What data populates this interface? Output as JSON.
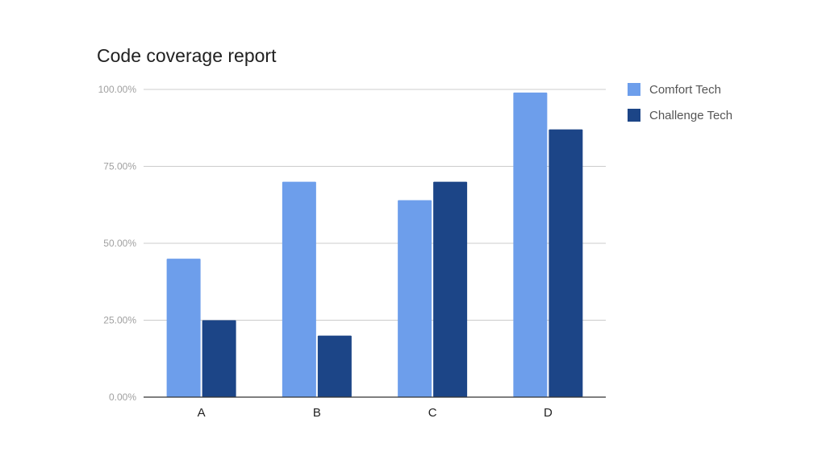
{
  "chart_data": {
    "type": "bar",
    "title": "Code coverage report",
    "xlabel": "",
    "ylabel": "",
    "categories": [
      "A",
      "B",
      "C",
      "D"
    ],
    "series": [
      {
        "name": "Comfort Tech",
        "color": "#6d9eeb",
        "values": [
          45,
          70,
          64,
          99
        ]
      },
      {
        "name": "Challenge Tech",
        "color": "#1c4587",
        "values": [
          25,
          20,
          70,
          87
        ]
      }
    ],
    "ylim": [
      0,
      100
    ],
    "yticks": [
      0,
      25,
      50,
      75,
      100
    ],
    "ytick_labels": [
      "0.00%",
      "25.00%",
      "50.00%",
      "75.00%",
      "100.00%"
    ],
    "grid": true,
    "legend_position": "right"
  }
}
